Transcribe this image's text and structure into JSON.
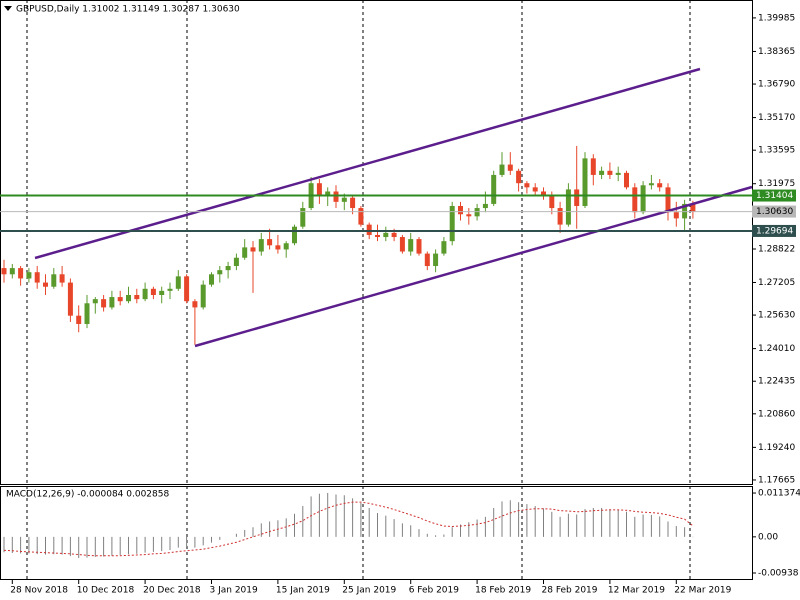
{
  "chart_data": [
    {
      "type": "candlestick",
      "title": "GBPUSD,Daily  1.31002 1.31149 1.30287 1.30630",
      "categories": [
        null,
        "28 Nov 2018",
        null,
        null,
        null,
        null,
        null,
        null,
        null,
        "10 Dec 2018",
        null,
        null,
        null,
        null,
        null,
        null,
        null,
        "20 Dec 2018",
        null,
        null,
        null,
        null,
        null,
        null,
        null,
        "3 Jan 2019",
        null,
        null,
        null,
        null,
        null,
        null,
        null,
        "15 Jan 2019",
        null,
        null,
        null,
        null,
        null,
        null,
        null,
        "25 Jan 2019",
        null,
        null,
        null,
        null,
        null,
        null,
        null,
        "6 Feb 2019",
        null,
        null,
        null,
        null,
        null,
        null,
        null,
        "18 Feb 2019",
        null,
        null,
        null,
        null,
        null,
        null,
        null,
        "28 Feb 2019",
        null,
        null,
        null,
        null,
        null,
        null,
        null,
        "12 Mar 2019",
        null,
        null,
        null,
        null,
        null,
        null,
        null,
        "22 Mar 2019",
        null,
        null
      ],
      "ohlc": [
        [
          1.279,
          1.283,
          1.272,
          1.276
        ],
        [
          1.276,
          1.281,
          1.274,
          1.279
        ],
        [
          1.279,
          1.28,
          1.2705,
          1.274
        ],
        [
          1.274,
          1.279,
          1.272,
          1.277
        ],
        [
          1.277,
          1.28,
          1.269,
          1.272
        ],
        [
          1.272,
          1.276,
          1.266,
          1.27
        ],
        [
          1.27,
          1.279,
          1.269,
          1.276
        ],
        [
          1.276,
          1.28,
          1.27,
          1.272
        ],
        [
          1.272,
          1.274,
          1.253,
          1.256
        ],
        [
          1.256,
          1.261,
          1.248,
          1.252
        ],
        [
          1.252,
          1.266,
          1.25,
          1.262
        ],
        [
          1.262,
          1.265,
          1.257,
          1.264
        ],
        [
          1.264,
          1.266,
          1.258,
          1.26
        ],
        [
          1.26,
          1.268,
          1.259,
          1.265
        ],
        [
          1.265,
          1.268,
          1.261,
          1.263
        ],
        [
          1.263,
          1.27,
          1.262,
          1.266
        ],
        [
          1.266,
          1.269,
          1.262,
          1.264
        ],
        [
          1.264,
          1.272,
          1.263,
          1.269
        ],
        [
          1.269,
          1.27,
          1.264,
          1.266
        ],
        [
          1.266,
          1.27,
          1.262,
          1.268
        ],
        [
          1.268,
          1.272,
          1.264,
          1.269
        ],
        [
          1.269,
          1.278,
          1.268,
          1.275
        ],
        [
          1.275,
          1.276,
          1.262,
          1.263
        ],
        [
          1.263,
          1.264,
          1.242,
          1.26
        ],
        [
          1.26,
          1.273,
          1.259,
          1.271
        ],
        [
          1.271,
          1.277,
          1.27,
          1.276
        ],
        [
          1.276,
          1.28,
          1.272,
          1.278
        ],
        [
          1.278,
          1.282,
          1.274,
          1.28
        ],
        [
          1.28,
          1.286,
          1.278,
          1.284
        ],
        [
          1.284,
          1.293,
          1.283,
          1.289
        ],
        [
          1.289,
          1.292,
          1.267,
          1.287
        ],
        [
          1.287,
          1.296,
          1.285,
          1.293
        ],
        [
          1.293,
          1.298,
          1.288,
          1.29
        ],
        [
          1.29,
          1.295,
          1.286,
          1.288
        ],
        [
          1.288,
          1.292,
          1.284,
          1.291
        ],
        [
          1.291,
          1.3,
          1.29,
          1.299
        ],
        [
          1.299,
          1.311,
          1.298,
          1.308
        ],
        [
          1.308,
          1.323,
          1.307,
          1.32
        ],
        [
          1.32,
          1.322,
          1.31,
          1.314
        ],
        [
          1.314,
          1.318,
          1.309,
          1.316
        ],
        [
          1.316,
          1.319,
          1.308,
          1.311
        ],
        [
          1.311,
          1.315,
          1.307,
          1.313
        ],
        [
          1.313,
          1.314,
          1.305,
          1.308
        ],
        [
          1.308,
          1.309,
          1.299,
          1.3
        ],
        [
          1.3,
          1.301,
          1.293,
          1.295
        ],
        [
          1.295,
          1.3,
          1.292,
          1.294
        ],
        [
          1.294,
          1.299,
          1.292,
          1.296
        ],
        [
          1.296,
          1.298,
          1.292,
          1.294
        ],
        [
          1.294,
          1.295,
          1.286,
          1.287
        ],
        [
          1.287,
          1.296,
          1.285,
          1.293
        ],
        [
          1.293,
          1.294,
          1.285,
          1.286
        ],
        [
          1.286,
          1.287,
          1.278,
          1.28
        ],
        [
          1.28,
          1.288,
          1.277,
          1.286
        ],
        [
          1.286,
          1.294,
          1.285,
          1.292
        ],
        [
          1.292,
          1.311,
          1.29,
          1.309
        ],
        [
          1.309,
          1.311,
          1.302,
          1.305
        ],
        [
          1.305,
          1.308,
          1.3,
          1.304
        ],
        [
          1.304,
          1.31,
          1.302,
          1.308
        ],
        [
          1.308,
          1.316,
          1.306,
          1.31
        ],
        [
          1.31,
          1.326,
          1.309,
          1.324
        ],
        [
          1.324,
          1.335,
          1.323,
          1.329
        ],
        [
          1.329,
          1.335,
          1.324,
          1.326
        ],
        [
          1.326,
          1.327,
          1.316,
          1.32
        ],
        [
          1.32,
          1.321,
          1.315,
          1.318
        ],
        [
          1.318,
          1.32,
          1.314,
          1.316
        ],
        [
          1.316,
          1.318,
          1.312,
          1.314
        ],
        [
          1.314,
          1.316,
          1.305,
          1.308
        ],
        [
          1.308,
          1.311,
          1.296,
          1.3
        ],
        [
          1.3,
          1.32,
          1.299,
          1.317
        ],
        [
          1.317,
          1.338,
          1.298,
          1.309
        ],
        [
          1.309,
          1.335,
          1.308,
          1.332
        ],
        [
          1.332,
          1.334,
          1.319,
          1.324
        ],
        [
          1.324,
          1.328,
          1.322,
          1.326
        ],
        [
          1.326,
          1.33,
          1.322,
          1.324
        ],
        [
          1.324,
          1.328,
          1.321,
          1.325
        ],
        [
          1.325,
          1.326,
          1.317,
          1.318
        ],
        [
          1.318,
          1.32,
          1.303,
          1.306
        ],
        [
          1.306,
          1.321,
          1.305,
          1.319
        ],
        [
          1.319,
          1.324,
          1.317,
          1.32
        ],
        [
          1.32,
          1.322,
          1.316,
          1.318
        ],
        [
          1.318,
          1.32,
          1.302,
          1.306
        ],
        [
          1.306,
          1.311,
          1.299,
          1.303
        ],
        [
          1.303,
          1.312,
          1.297,
          1.31
        ],
        [
          1.31,
          1.3115,
          1.3029,
          1.3063
        ]
      ],
      "up_color": "#5a9a2c",
      "down_color": "#e8462a",
      "ylim": [
        1.1747,
        1.4085
      ],
      "yticks": [
        1.39985,
        1.38365,
        {
          "value": 1.3679,
          "label": "1.36790"
        },
        {
          "value": 1.3517,
          "label": "1.35170"
        },
        1.33595,
        1.31975,
        1.28822,
        1.27205,
        {
          "value": 1.2563,
          "label": "1.25630"
        },
        {
          "value": 1.2401,
          "label": "1.24010"
        },
        1.22435,
        {
          "value": 1.2086,
          "label": "1.20860"
        },
        {
          "value": 1.1924,
          "label": "1.19240"
        },
        1.17665
      ],
      "hlines": [
        {
          "value": 1.31404,
          "color": "#2e8b22"
        },
        {
          "value": 1.3063,
          "label": "1.30630",
          "color": "#b8b8b8"
        },
        {
          "value": 1.29694,
          "color": "#2f4f4f"
        }
      ]
    },
    {
      "type": "macd",
      "title": "MACD(12,26,9) -0.000084 0.002858",
      "histogram": [
        -0.004,
        -0.0042,
        -0.0043,
        -0.0043,
        -0.0045,
        -0.0046,
        -0.0045,
        -0.0046,
        -0.005,
        -0.0055,
        -0.0054,
        -0.0052,
        -0.0051,
        -0.0049,
        -0.0047,
        -0.0045,
        -0.0044,
        -0.0041,
        -0.0039,
        -0.0037,
        -0.0034,
        -0.0028,
        -0.0027,
        -0.0028,
        -0.0022,
        -0.0015,
        -0.0008,
        0.0,
        0.0008,
        0.0018,
        0.0025,
        0.0035,
        0.004,
        0.0043,
        0.0048,
        0.006,
        0.008,
        0.0105,
        0.0112,
        0.0114,
        0.011,
        0.0108,
        0.01,
        0.0088,
        0.0075,
        0.0062,
        0.0055,
        0.0046,
        0.0035,
        0.003,
        0.002,
        0.0008,
        0.0004,
        0.0006,
        0.0025,
        0.0032,
        0.0038,
        0.0045,
        0.0052,
        0.0075,
        0.0092,
        0.0095,
        0.009,
        0.0085,
        0.008,
        0.0074,
        0.0065,
        0.0052,
        0.006,
        0.0058,
        0.0072,
        0.0075,
        0.0075,
        0.0072,
        0.007,
        0.0065,
        0.0052,
        0.0058,
        0.0057,
        0.0053,
        0.004,
        0.0028,
        0.0025,
        -8.4e-05
      ],
      "signal": [
        -0.0035,
        -0.0036,
        -0.0038,
        -0.0039,
        -0.004,
        -0.0041,
        -0.0042,
        -0.0043,
        -0.0044,
        -0.0046,
        -0.0048,
        -0.0049,
        -0.0049,
        -0.0049,
        -0.0049,
        -0.0048,
        -0.0047,
        -0.0046,
        -0.0044,
        -0.0043,
        -0.0041,
        -0.0038,
        -0.0036,
        -0.0034,
        -0.0032,
        -0.0028,
        -0.0024,
        -0.0019,
        -0.0014,
        -0.0007,
        0.0,
        0.0007,
        0.0014,
        0.002,
        0.0026,
        0.0033,
        0.0042,
        0.0055,
        0.0066,
        0.0075,
        0.0082,
        0.0087,
        0.009,
        0.009,
        0.0087,
        0.0082,
        0.0077,
        0.0071,
        0.0064,
        0.0057,
        0.005,
        0.0041,
        0.0034,
        0.0028,
        0.0027,
        0.0028,
        0.003,
        0.0033,
        0.0037,
        0.0045,
        0.0054,
        0.0062,
        0.0068,
        0.0071,
        0.0073,
        0.0073,
        0.0072,
        0.0068,
        0.0067,
        0.0065,
        0.0066,
        0.0068,
        0.0069,
        0.007,
        0.007,
        0.0069,
        0.0066,
        0.0064,
        0.0063,
        0.0061,
        0.0057,
        0.0051,
        0.0046,
        0.002858
      ],
      "histogram_color": "#808080",
      "signal_color": "#d03030",
      "ylim": [
        -0.0112,
        0.0132
      ],
      "yticks": [
        0.011374,
        {
          "value": 0,
          "label": "0.00"
        },
        -0.00938
      ]
    }
  ]
}
